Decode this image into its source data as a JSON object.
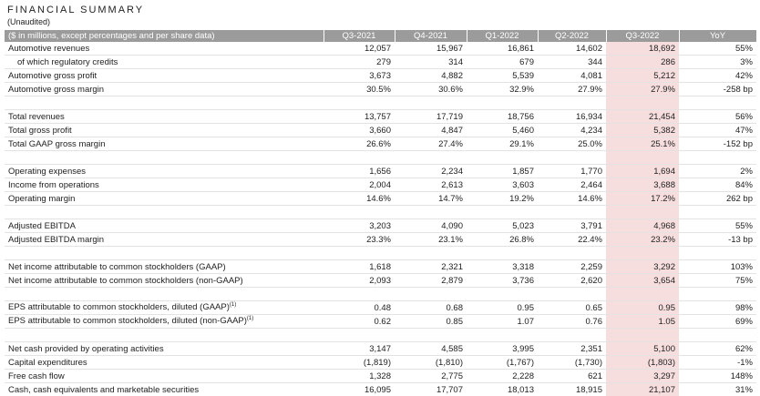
{
  "header": {
    "title": "FINANCIAL SUMMARY",
    "subtitle": "(Unaudited)"
  },
  "table": {
    "columns": [
      "($ in millions, except percentages and per share data)",
      "Q3-2021",
      "Q4-2021",
      "Q1-2022",
      "Q2-2022",
      "Q3-2022",
      "YoY"
    ],
    "groups": [
      {
        "rows": [
          {
            "label": "Automotive revenues",
            "values": [
              "12,057",
              "15,967",
              "16,861",
              "14,602",
              "18,692",
              "55%"
            ]
          },
          {
            "label": "of which regulatory credits",
            "values": [
              "279",
              "314",
              "679",
              "344",
              "286",
              "3%"
            ]
          },
          {
            "label": "Automotive gross profit",
            "values": [
              "3,673",
              "4,882",
              "5,539",
              "4,081",
              "5,212",
              "42%"
            ]
          },
          {
            "label": "Automotive gross margin",
            "values": [
              "30.5%",
              "30.6%",
              "32.9%",
              "27.9%",
              "27.9%",
              "-258 bp"
            ]
          }
        ]
      },
      {
        "rows": [
          {
            "label": "Total revenues",
            "values": [
              "13,757",
              "17,719",
              "18,756",
              "16,934",
              "21,454",
              "56%"
            ]
          },
          {
            "label": "Total gross profit",
            "values": [
              "3,660",
              "4,847",
              "5,460",
              "4,234",
              "5,382",
              "47%"
            ]
          },
          {
            "label": "Total GAAP gross margin",
            "values": [
              "26.6%",
              "27.4%",
              "29.1%",
              "25.0%",
              "25.1%",
              "-152 bp"
            ]
          }
        ]
      },
      {
        "rows": [
          {
            "label": "Operating expenses",
            "values": [
              "1,656",
              "2,234",
              "1,857",
              "1,770",
              "1,694",
              "2%"
            ]
          },
          {
            "label": "Income from operations",
            "values": [
              "2,004",
              "2,613",
              "3,603",
              "2,464",
              "3,688",
              "84%"
            ]
          },
          {
            "label": "Operating margin",
            "values": [
              "14.6%",
              "14.7%",
              "19.2%",
              "14.6%",
              "17.2%",
              "262 bp"
            ]
          }
        ]
      },
      {
        "rows": [
          {
            "label": "Adjusted EBITDA",
            "values": [
              "3,203",
              "4,090",
              "5,023",
              "3,791",
              "4,968",
              "55%"
            ]
          },
          {
            "label": "Adjusted EBITDA margin",
            "values": [
              "23.3%",
              "23.1%",
              "26.8%",
              "22.4%",
              "23.2%",
              "-13 bp"
            ]
          }
        ]
      },
      {
        "rows": [
          {
            "label": "Net income attributable to common stockholders (GAAP)",
            "values": [
              "1,618",
              "2,321",
              "3,318",
              "2,259",
              "3,292",
              "103%"
            ]
          },
          {
            "label": "Net income attributable to common stockholders (non-GAAP)",
            "values": [
              "2,093",
              "2,879",
              "3,736",
              "2,620",
              "3,654",
              "75%"
            ]
          }
        ]
      },
      {
        "rows": [
          {
            "label": "EPS attributable to common stockholders, diluted (GAAP)",
            "note": "(1)",
            "values": [
              "0.48",
              "0.68",
              "0.95",
              "0.65",
              "0.95",
              "98%"
            ]
          },
          {
            "label": "EPS attributable to common stockholders, diluted (non-GAAP)",
            "note": "(1)",
            "values": [
              "0.62",
              "0.85",
              "1.07",
              "0.76",
              "1.05",
              "69%"
            ]
          }
        ]
      },
      {
        "rows": [
          {
            "label": "Net cash provided by operating activities",
            "values": [
              "3,147",
              "4,585",
              "3,995",
              "2,351",
              "5,100",
              "62%"
            ]
          },
          {
            "label": "Capital expenditures",
            "values": [
              "(1,819)",
              "(1,810)",
              "(1,767)",
              "(1,730)",
              "(1,803)",
              "-1%"
            ]
          },
          {
            "label": "Free cash flow",
            "values": [
              "1,328",
              "2,775",
              "2,228",
              "621",
              "3,297",
              "148%"
            ]
          },
          {
            "label": "Cash, cash equivalents and marketable securities",
            "values": [
              "16,095",
              "17,707",
              "18,013",
              "18,915",
              "21,107",
              "31%"
            ]
          }
        ]
      }
    ]
  }
}
